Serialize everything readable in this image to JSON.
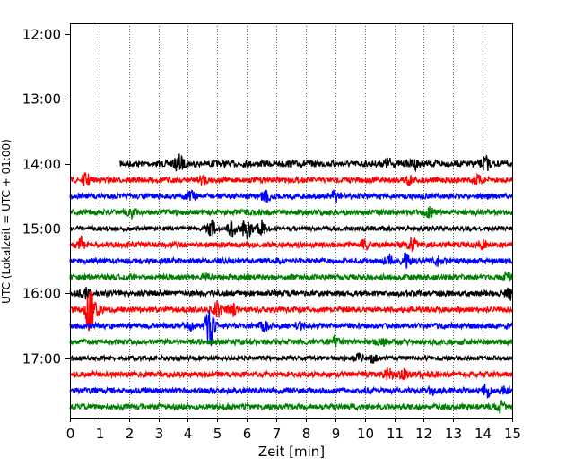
{
  "chart_data": {
    "type": "line",
    "title": "",
    "xlabel": "Zeit  [min]",
    "ylabel": "UTC (Lokalzeit = UTC + 01:00)",
    "xlim": [
      0,
      15
    ],
    "x_ticks": [
      "0",
      "1",
      "2",
      "3",
      "4",
      "5",
      "6",
      "7",
      "8",
      "9",
      "10",
      "11",
      "12",
      "13",
      "14",
      "15"
    ],
    "y_ticks": [
      "12:00",
      "13:00",
      "14:00",
      "15:00",
      "16:00",
      "17:00"
    ],
    "ylim": [
      "11:50",
      "17:55"
    ],
    "grid": "vertical dotted lines at each minute",
    "legend": "none",
    "series_colors": [
      "#000000",
      "#ff0000",
      "#0000ff",
      "#008000"
    ],
    "traces": [
      {
        "time": "14:00",
        "color": "#000000",
        "start_min": 1.7,
        "amp": 3.5,
        "events": [
          {
            "t": 3.7,
            "a": 9
          },
          {
            "t": 10.8,
            "a": 5
          },
          {
            "t": 11.7,
            "a": 4
          },
          {
            "t": 14.1,
            "a": 7
          }
        ]
      },
      {
        "time": "14:15",
        "color": "#ff0000",
        "start_min": 0,
        "amp": 3,
        "events": [
          {
            "t": 0.55,
            "a": 6
          },
          {
            "t": 4.5,
            "a": 4
          },
          {
            "t": 11.5,
            "a": 5
          },
          {
            "t": 13.8,
            "a": 4
          }
        ]
      },
      {
        "time": "14:30",
        "color": "#0000ff",
        "start_min": 0,
        "amp": 3,
        "events": [
          {
            "t": 4.1,
            "a": 5
          },
          {
            "t": 6.65,
            "a": 8
          },
          {
            "t": 9.0,
            "a": 5
          }
        ]
      },
      {
        "time": "14:45",
        "color": "#008000",
        "start_min": 0,
        "amp": 3,
        "events": [
          {
            "t": 2.1,
            "a": 5
          },
          {
            "t": 12.2,
            "a": 4
          }
        ]
      },
      {
        "time": "15:00",
        "color": "#000000",
        "start_min": 0,
        "amp": 2.5,
        "events": [
          {
            "t": 4.8,
            "a": 8
          },
          {
            "t": 5.5,
            "a": 9
          },
          {
            "t": 6.0,
            "a": 14
          },
          {
            "t": 6.5,
            "a": 8
          }
        ]
      },
      {
        "time": "15:15",
        "color": "#ff0000",
        "start_min": 0,
        "amp": 3,
        "events": [
          {
            "t": 0.4,
            "a": 7
          },
          {
            "t": 10.0,
            "a": 5
          },
          {
            "t": 11.6,
            "a": 6
          },
          {
            "t": 14.0,
            "a": 4
          }
        ]
      },
      {
        "time": "15:30",
        "color": "#0000ff",
        "start_min": 0,
        "amp": 3,
        "events": [
          {
            "t": 10.8,
            "a": 6
          },
          {
            "t": 11.4,
            "a": 7
          },
          {
            "t": 12.5,
            "a": 4
          }
        ]
      },
      {
        "time": "15:45",
        "color": "#008000",
        "start_min": 0,
        "amp": 3,
        "events": [
          {
            "t": 4.6,
            "a": 3
          },
          {
            "t": 14.8,
            "a": 4
          }
        ]
      },
      {
        "time": "16:00",
        "color": "#000000",
        "start_min": 0,
        "amp": 3,
        "events": [
          {
            "t": 0.5,
            "a": 5
          },
          {
            "t": 14.9,
            "a": 6
          }
        ]
      },
      {
        "time": "16:15",
        "color": "#ff0000",
        "start_min": 0,
        "amp": 3,
        "events": [
          {
            "t": 0.65,
            "a": 22
          },
          {
            "t": 0.9,
            "a": 9
          },
          {
            "t": 5.0,
            "a": 8
          },
          {
            "t": 5.5,
            "a": 6
          }
        ]
      },
      {
        "time": "16:30",
        "color": "#0000ff",
        "start_min": 0,
        "amp": 3,
        "events": [
          {
            "t": 4.1,
            "a": 6
          },
          {
            "t": 4.75,
            "a": 24
          },
          {
            "t": 6.6,
            "a": 5
          },
          {
            "t": 7.8,
            "a": 4
          }
        ]
      },
      {
        "time": "16:45",
        "color": "#008000",
        "start_min": 0,
        "amp": 3,
        "events": [
          {
            "t": 9.0,
            "a": 5
          },
          {
            "t": 10.6,
            "a": 3
          }
        ]
      },
      {
        "time": "17:00",
        "color": "#000000",
        "start_min": 0,
        "amp": 2.5,
        "events": [
          {
            "t": 9.8,
            "a": 4
          },
          {
            "t": 10.3,
            "a": 4
          }
        ]
      },
      {
        "time": "17:15",
        "color": "#ff0000",
        "start_min": 0,
        "amp": 3,
        "events": [
          {
            "t": 10.8,
            "a": 5
          },
          {
            "t": 11.3,
            "a": 5
          },
          {
            "t": 12.0,
            "a": 3
          }
        ]
      },
      {
        "time": "17:30",
        "color": "#0000ff",
        "start_min": 0,
        "amp": 3,
        "events": [
          {
            "t": 12.3,
            "a": 3
          },
          {
            "t": 14.15,
            "a": 7
          },
          {
            "t": 14.7,
            "a": 4
          }
        ]
      },
      {
        "time": "17:45",
        "color": "#008000",
        "start_min": 0,
        "amp": 3,
        "events": [
          {
            "t": 14.6,
            "a": 5
          }
        ]
      }
    ]
  }
}
